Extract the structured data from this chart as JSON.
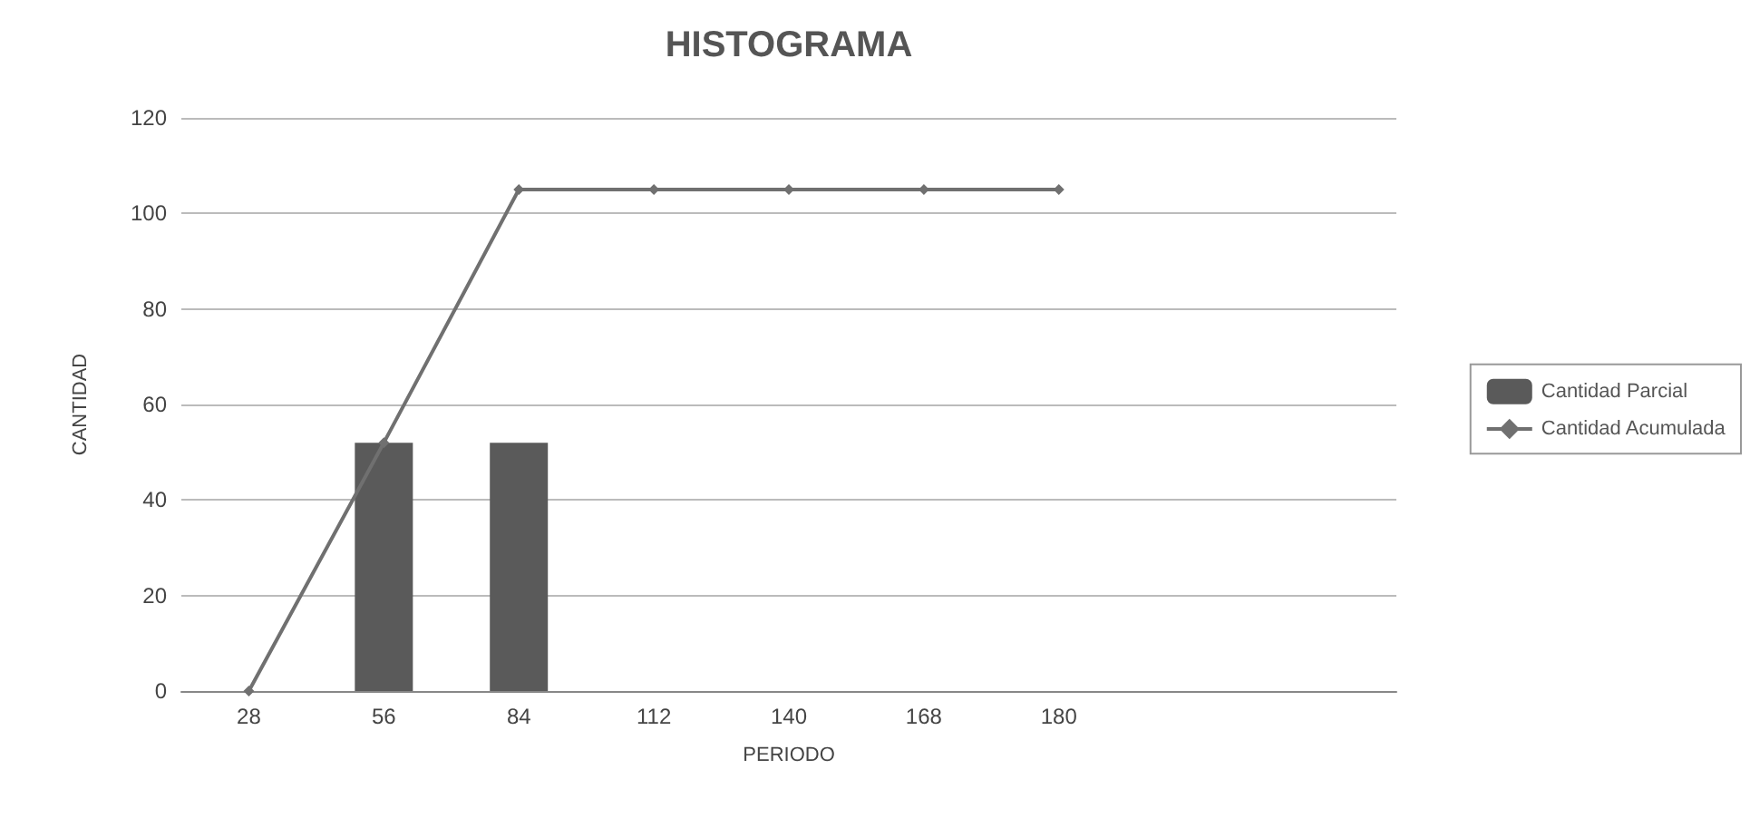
{
  "chart_data": {
    "type": "bar",
    "title": "HISTOGRAMA",
    "xlabel": "PERIODO",
    "ylabel": "CANTIDAD",
    "categories": [
      "28",
      "56",
      "84",
      "112",
      "140",
      "168",
      "180",
      null,
      null
    ],
    "series": [
      {
        "name": "Cantidad Parcial",
        "color": "#5a5a5a",
        "values": [
          0,
          52,
          52,
          0,
          0,
          0,
          0,
          null,
          null
        ]
      },
      {
        "name": "Cantidad Acumulada",
        "type": "line",
        "color": "#707070",
        "marker": "diamond",
        "values": [
          0,
          52,
          105,
          105,
          105,
          105,
          105,
          null,
          null
        ]
      }
    ],
    "ylim": [
      0,
      120
    ],
    "yticks": [
      0,
      20,
      40,
      60,
      80,
      100,
      120
    ],
    "grid": "y",
    "legend": "right"
  }
}
